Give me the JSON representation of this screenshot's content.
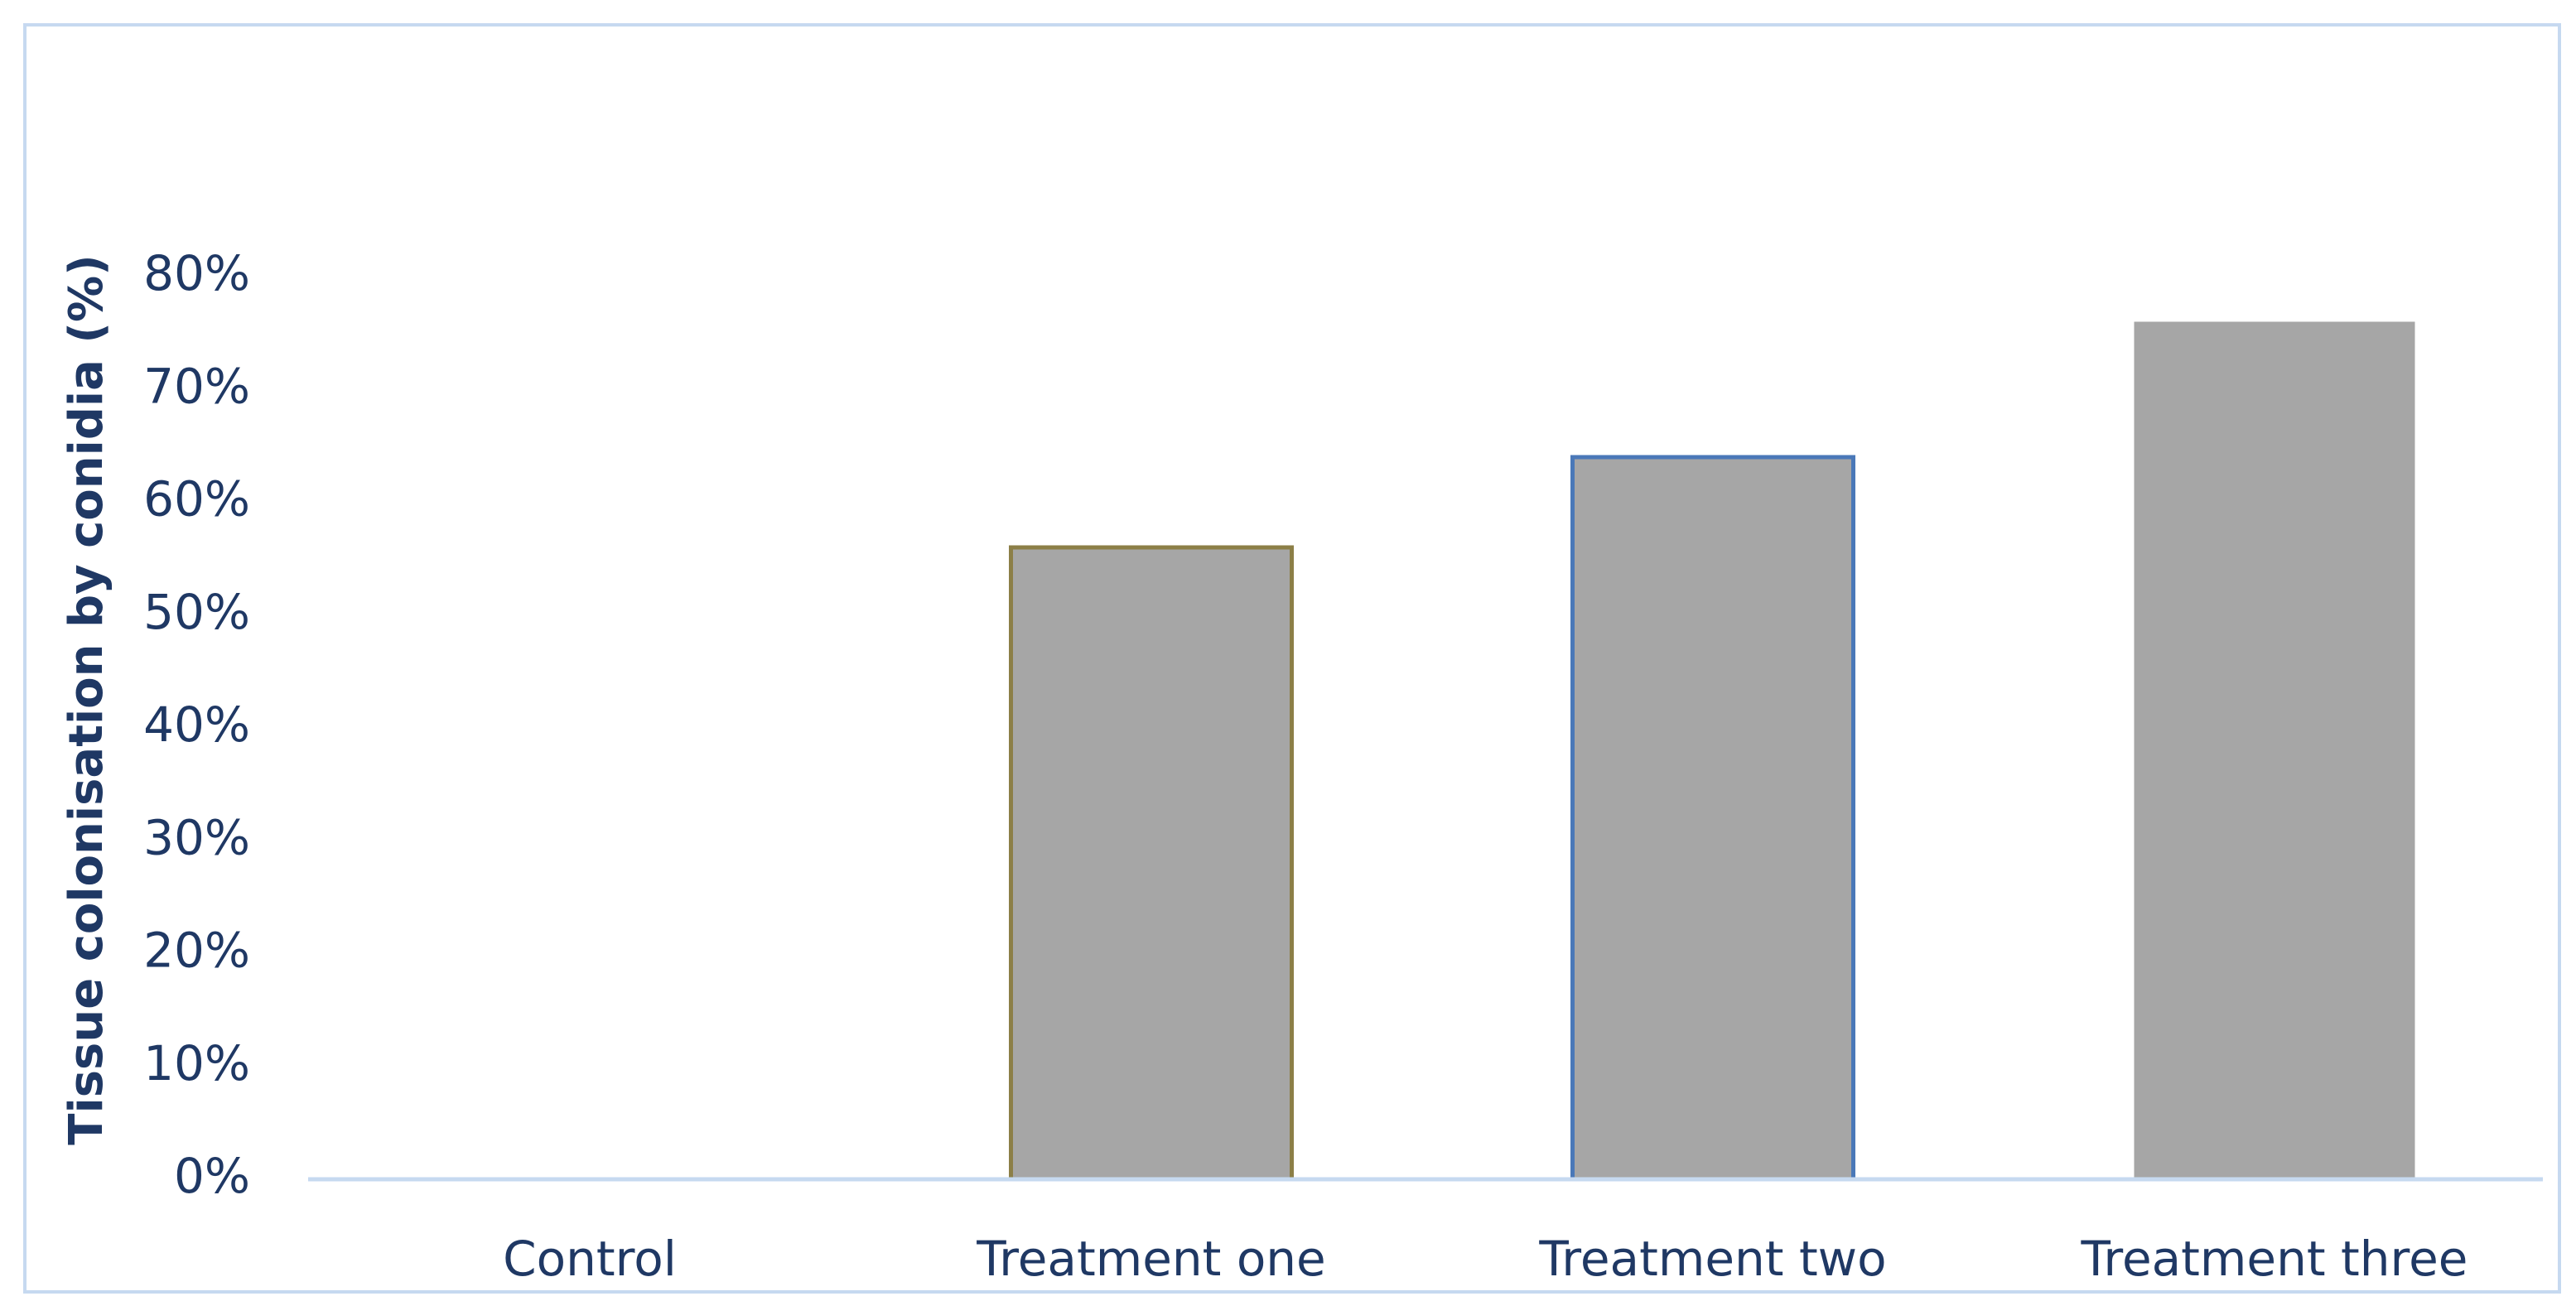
{
  "chart_data": {
    "type": "bar",
    "ylabel": "Tissue colonisation by conidia (%)",
    "categories": [
      "Control",
      "Treatment one",
      "Treatment two",
      "Treatment three"
    ],
    "values": [
      0,
      56,
      64,
      76
    ],
    "color": "#a6a6a6",
    "edgecolors": [
      null,
      "#8c7f47",
      "#4a78b8",
      null
    ],
    "ylim": [
      0,
      80
    ],
    "yticks": [
      {
        "value": 0,
        "label": "0%"
      },
      {
        "value": 10,
        "label": "10%"
      },
      {
        "value": 20,
        "label": "20%"
      },
      {
        "value": 30,
        "label": "30%"
      },
      {
        "value": 40,
        "label": "40%"
      },
      {
        "value": 50,
        "label": "50%"
      },
      {
        "value": 60,
        "label": "60%"
      },
      {
        "value": 70,
        "label": "70%"
      },
      {
        "value": 80,
        "label": "80%"
      }
    ],
    "grid": false
  }
}
